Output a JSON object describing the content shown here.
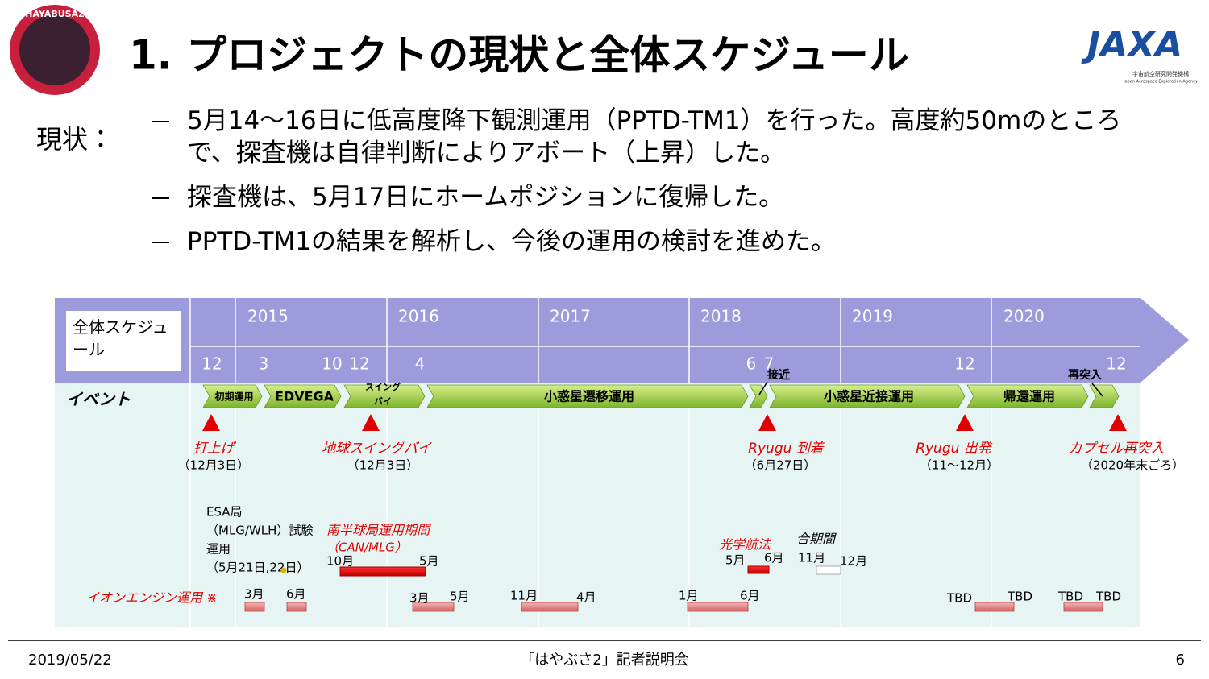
{
  "header": {
    "title": "1. プロジェクトの現状と全体スケジュール",
    "mission_logo": "HAYABUSA2",
    "agency_logo": "JAXA",
    "agency_name_ja": "宇宙航空研究開発機構",
    "agency_name_en": "Japan Aerospace Exploration Agency"
  },
  "status": {
    "label": "現状：",
    "bullets": [
      "5月14～16日に低高度降下観測運用（PPTD-TM1）を行った。高度約50mのところで、探査機は自律判断によりアボート（上昇）した。",
      "探査機は、5月17日にホームポジションに復帰した。",
      "PPTD-TM1の結果を解析し、今後の運用の検討を進めた。"
    ]
  },
  "schedule": {
    "label": "全体スケジュール",
    "years": [
      "2015",
      "2016",
      "2017",
      "2018",
      "2019",
      "2020"
    ],
    "months": [
      "12",
      "3",
      "10",
      "12",
      "4",
      "6",
      "7",
      "12",
      "12"
    ],
    "events_label": "イベント",
    "phases": [
      {
        "label": "初期運用"
      },
      {
        "label": "EDVEGA"
      },
      {
        "label_lines": [
          "スイング",
          "バイ"
        ]
      },
      {
        "label": "小惑星遷移運用"
      },
      {
        "label": "小惑星近接運用"
      },
      {
        "label": "帰還運用"
      }
    ],
    "annotations": [
      "接近",
      "再突入"
    ],
    "milestones": [
      {
        "name": "打上げ",
        "date": "（12月3日）"
      },
      {
        "name": "地球スイングバイ",
        "date": "（12月3日）"
      },
      {
        "name": "Ryugu 到着",
        "date": "（6月27日）"
      },
      {
        "name": "Ryugu 出発",
        "date": "（11～12月）"
      },
      {
        "name": "カプセル再突入",
        "date": "（2020年末ごろ）"
      }
    ],
    "esa": [
      "ESA局",
      "（MLG/WLH）試験",
      "運用",
      "（5月21日,22日）"
    ],
    "southern": {
      "name": "南半球局運用期間",
      "sub": "（CAN/MLG）",
      "start": "10月",
      "end": "5月"
    },
    "optical": {
      "name": "光学航法",
      "start": "5月",
      "end": "6月"
    },
    "conjunction": {
      "name": "合期間",
      "start": "11月",
      "end": "12月"
    },
    "ion_engine": {
      "label": "イオンエンジン運用 ※",
      "periods": [
        {
          "start": "3月"
        },
        {
          "start": "6月"
        },
        {
          "start": "3月",
          "end": "5月"
        },
        {
          "start": "11月",
          "end": "4月"
        },
        {
          "start": "1月",
          "end": "6月"
        },
        {
          "start": "TBD",
          "end": "TBD"
        },
        {
          "start": "TBD",
          "end": "TBD"
        }
      ]
    }
  },
  "footer": {
    "date": "2019/05/22",
    "event": "「はやぶさ2」記者説明会",
    "page": "6"
  }
}
